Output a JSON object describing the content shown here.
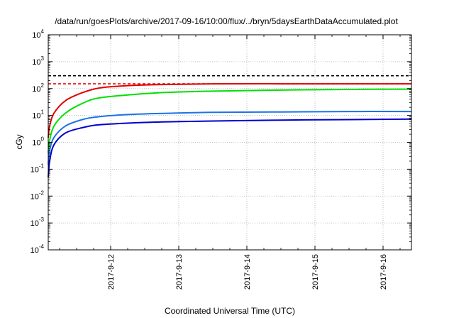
{
  "chart_data": {
    "type": "line",
    "title": "/data/run/goesPlots/archive/2017-09-16/10:00/flux/../bryn/5daysEarthDataAccumulated.plot",
    "xlabel": "Coordinated Universal Time (UTC)",
    "ylabel": "cGy",
    "y_scale": "log",
    "ylim": [
      0.0001,
      10000
    ],
    "xlim": [
      "2017-09-11 02:00",
      "2017-09-16 10:00"
    ],
    "grid": true,
    "legend": "none",
    "x_ticks": [
      "2017-9-12",
      "2017-9-13",
      "2017-9-14",
      "2017-9-15",
      "2017-9-16"
    ],
    "y_ticks": [
      {
        "base": "10",
        "exp": "4"
      },
      {
        "base": "10",
        "exp": "3"
      },
      {
        "base": "10",
        "exp": "2"
      },
      {
        "base": "10",
        "exp": "1"
      },
      {
        "base": "10",
        "exp": "0"
      },
      {
        "base": "10",
        "exp": "-1"
      },
      {
        "base": "10",
        "exp": "-2"
      },
      {
        "base": "10",
        "exp": "-3"
      },
      {
        "base": "10",
        "exp": "-4"
      }
    ],
    "reference_lines": [
      {
        "y": 300,
        "color": "#000000",
        "dashed": true
      },
      {
        "y": 150,
        "color": "#e00000",
        "dashed": true
      }
    ],
    "series": [
      {
        "color": "#e00000",
        "x": [
          "2017-09-11 02:00",
          "2017-09-11 02:30",
          "2017-09-11 04:00",
          "2017-09-11 08:00",
          "2017-09-11 14:00",
          "2017-09-11 20:00",
          "2017-09-12 04:00",
          "2017-09-12 16:00",
          "2017-09-13 12:00",
          "2017-09-14 12:00",
          "2017-09-15 12:00",
          "2017-09-16 10:00"
        ],
        "y": [
          1.5,
          4,
          12,
          35,
          70,
          105,
          125,
          140,
          150,
          150,
          150,
          150
        ]
      },
      {
        "color": "#00e000",
        "x": [
          "2017-09-11 02:00",
          "2017-09-11 02:30",
          "2017-09-11 04:00",
          "2017-09-11 08:00",
          "2017-09-11 14:00",
          "2017-09-11 20:00",
          "2017-09-12 08:00",
          "2017-09-12 20:00",
          "2017-09-13 12:00",
          "2017-09-14 12:00",
          "2017-09-15 12:00",
          "2017-09-16 10:00"
        ],
        "y": [
          0.4,
          1.2,
          4,
          12,
          28,
          45,
          60,
          72,
          80,
          88,
          93,
          95
        ]
      },
      {
        "color": "#1a73e8",
        "x": [
          "2017-09-11 02:00",
          "2017-09-11 02:30",
          "2017-09-11 04:00",
          "2017-09-11 08:00",
          "2017-09-11 14:00",
          "2017-09-11 20:00",
          "2017-09-12 08:00",
          "2017-09-12 20:00",
          "2017-09-13 12:00",
          "2017-09-14 12:00",
          "2017-09-15 12:00",
          "2017-09-16 10:00"
        ],
        "y": [
          0.15,
          0.5,
          1.5,
          4,
          7,
          9,
          11,
          12,
          13,
          13.5,
          14,
          14
        ]
      },
      {
        "color": "#0000cc",
        "x": [
          "2017-09-11 02:00",
          "2017-09-11 02:30",
          "2017-09-11 04:00",
          "2017-09-11 08:00",
          "2017-09-11 14:00",
          "2017-09-11 20:00",
          "2017-09-12 08:00",
          "2017-09-12 20:00",
          "2017-09-13 12:00",
          "2017-09-14 12:00",
          "2017-09-15 12:00",
          "2017-09-16 10:00"
        ],
        "y": [
          0.05,
          0.2,
          0.8,
          2.2,
          3.5,
          4.5,
          5.3,
          5.8,
          6.2,
          6.7,
          7.0,
          7.3
        ]
      }
    ]
  }
}
